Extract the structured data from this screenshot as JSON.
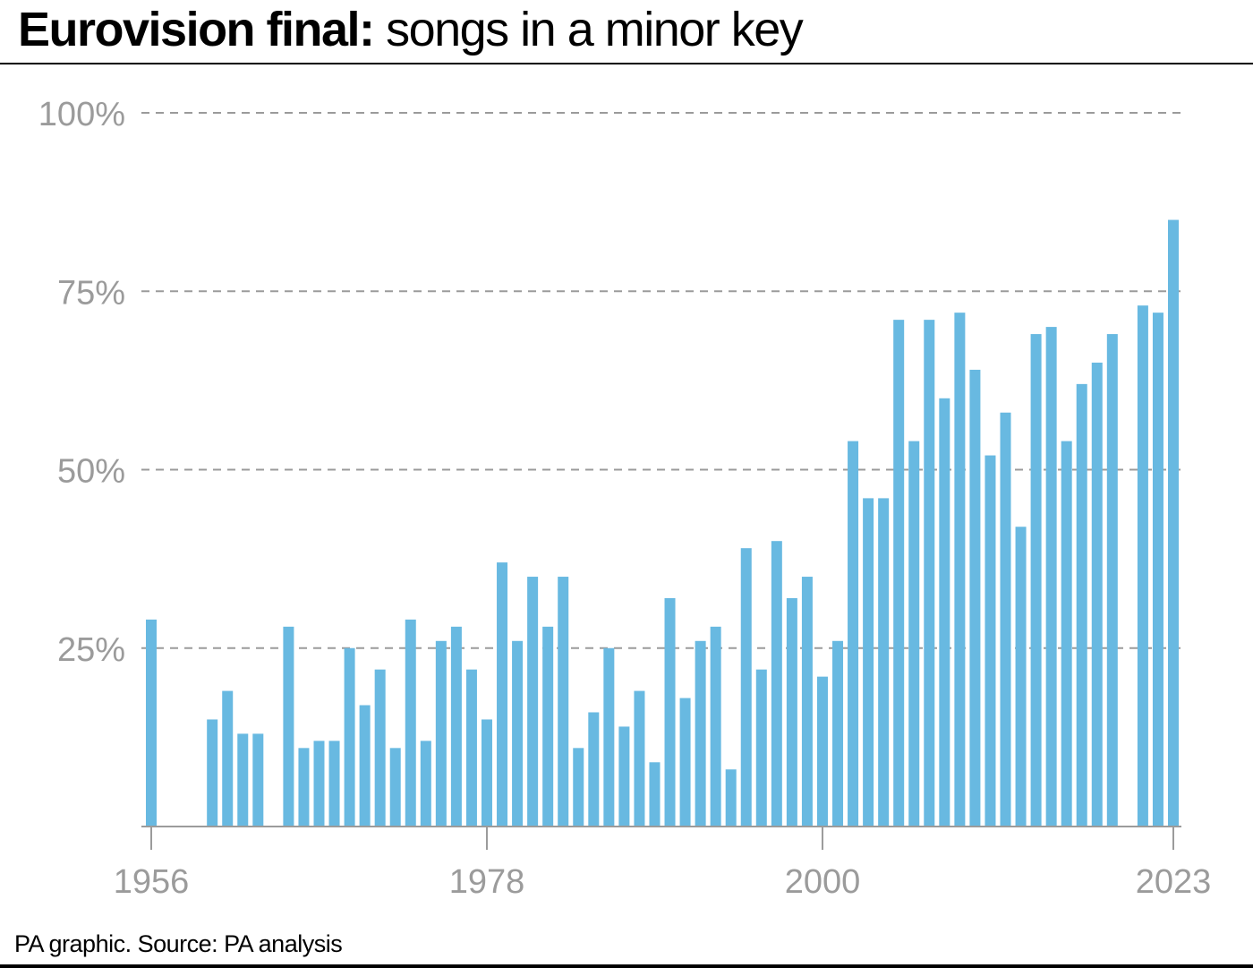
{
  "title": {
    "bold": "Eurovision final:",
    "rest": "songs in a minor key"
  },
  "source": "PA graphic. Source: PA analysis",
  "colors": {
    "bar": "#68b9e1",
    "grid": "#9b9b9b",
    "axis": "#9b9b9b",
    "text": "#000000"
  },
  "chart_data": {
    "type": "bar",
    "title": "Eurovision final: songs in a minor key",
    "xlabel": "",
    "ylabel": "",
    "ylim": [
      0,
      100
    ],
    "y_ticks": [
      25,
      50,
      75,
      100
    ],
    "y_tick_labels": [
      "25%",
      "50%",
      "75%",
      "100%"
    ],
    "x_ticks": [
      1956,
      1978,
      2000,
      2023
    ],
    "x_tick_labels": [
      "1956",
      "1978",
      "2000",
      "2023"
    ],
    "grid": "horizontal dashed",
    "legend": "none",
    "x": [
      1956,
      1957,
      1958,
      1959,
      1960,
      1961,
      1962,
      1963,
      1964,
      1965,
      1966,
      1967,
      1968,
      1969,
      1970,
      1971,
      1972,
      1973,
      1974,
      1975,
      1976,
      1977,
      1978,
      1979,
      1980,
      1981,
      1982,
      1983,
      1984,
      1985,
      1986,
      1987,
      1988,
      1989,
      1990,
      1991,
      1992,
      1993,
      1994,
      1995,
      1996,
      1997,
      1998,
      1999,
      2000,
      2001,
      2002,
      2003,
      2004,
      2005,
      2006,
      2007,
      2008,
      2009,
      2010,
      2011,
      2012,
      2013,
      2014,
      2015,
      2016,
      2017,
      2018,
      2019,
      2021,
      2022,
      2023
    ],
    "values": [
      29,
      0,
      0,
      0,
      15,
      19,
      13,
      13,
      0,
      28,
      11,
      12,
      12,
      25,
      17,
      22,
      11,
      29,
      12,
      26,
      28,
      22,
      15,
      37,
      26,
      35,
      28,
      35,
      11,
      16,
      25,
      14,
      19,
      9,
      32,
      18,
      26,
      28,
      8,
      39,
      22,
      40,
      32,
      35,
      21,
      26,
      54,
      46,
      46,
      71,
      54,
      71,
      60,
      72,
      64,
      52,
      58,
      42,
      69,
      70,
      54,
      62,
      65,
      69,
      73,
      72,
      85
    ]
  }
}
